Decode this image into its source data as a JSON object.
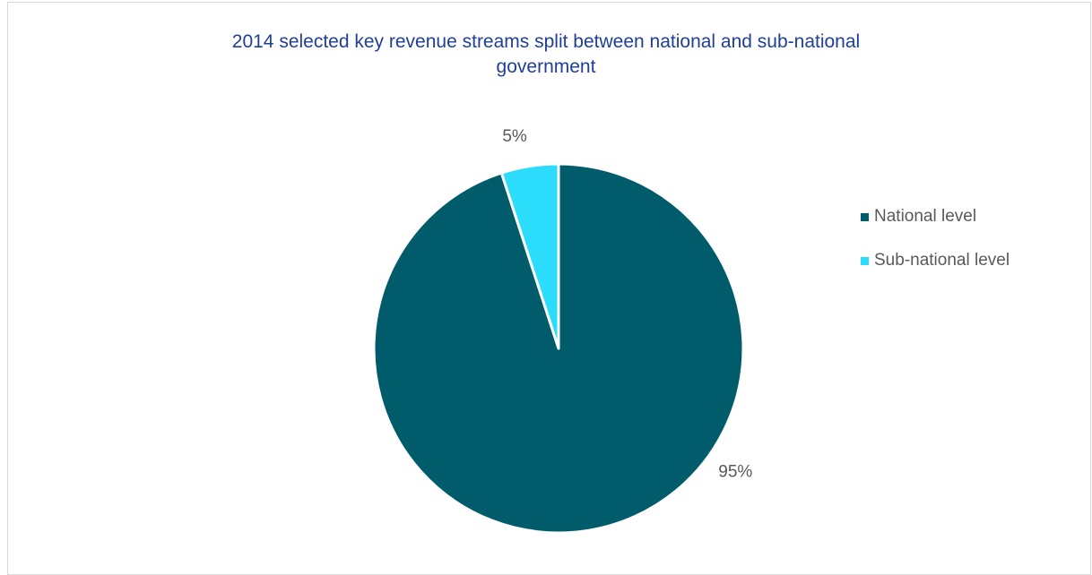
{
  "chart_data": {
    "type": "pie",
    "title_line1": "2014 selected key revenue streams split between national and sub-national",
    "title_line2": "government",
    "slices": [
      {
        "name": "National level",
        "value": 95,
        "label": "95%",
        "color": "#005b6b"
      },
      {
        "name": "Sub-national level",
        "value": 5,
        "label": "5%",
        "color": "#2bdcfb"
      }
    ],
    "legend_position": "right"
  }
}
